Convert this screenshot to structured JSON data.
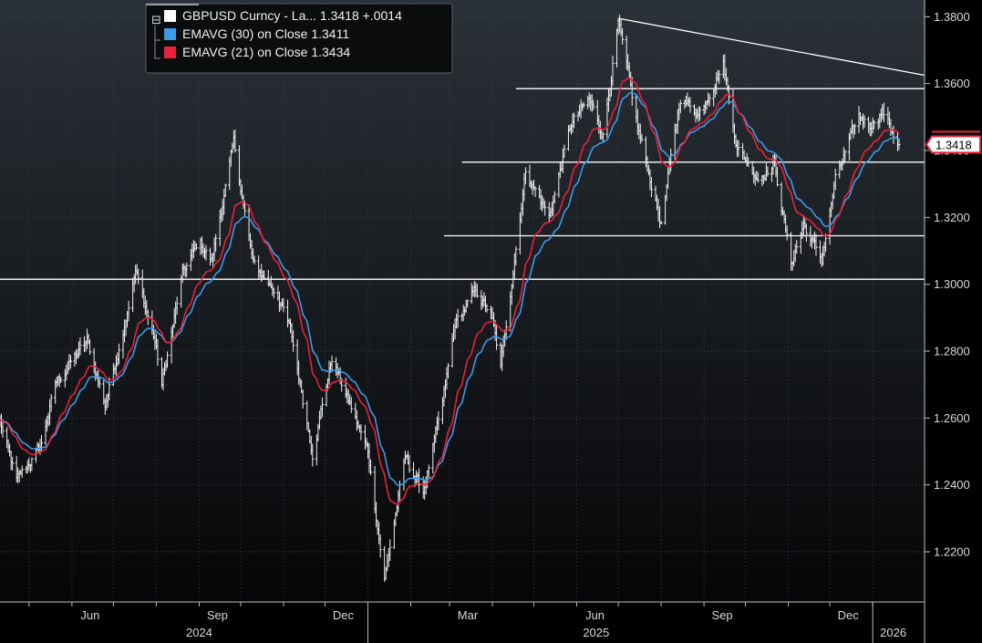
{
  "chart_data": {
    "type": "line",
    "x_type": "date",
    "x_range": [
      "2024-04-10",
      "2026-01-20"
    ],
    "y_range": [
      1.205,
      1.385
    ],
    "yticks": [
      1.22,
      1.24,
      1.26,
      1.28,
      1.3,
      1.32,
      1.34,
      1.36,
      1.38
    ],
    "ytick_labels": [
      "1.2200",
      "1.2400",
      "1.2600",
      "1.2800",
      "1.3000",
      "1.3200",
      "1.3400",
      "1.3600",
      "1.3800"
    ],
    "month_ticks": [
      {
        "date": "2024-05-01",
        "label": ""
      },
      {
        "date": "2024-06-01",
        "label": "Jun"
      },
      {
        "date": "2024-07-01",
        "label": ""
      },
      {
        "date": "2024-08-01",
        "label": ""
      },
      {
        "date": "2024-09-01",
        "label": "Sep"
      },
      {
        "date": "2024-10-01",
        "label": ""
      },
      {
        "date": "2024-11-01",
        "label": ""
      },
      {
        "date": "2024-12-01",
        "label": "Dec"
      },
      {
        "date": "2025-01-01",
        "label": ""
      },
      {
        "date": "2025-02-01",
        "label": ""
      },
      {
        "date": "2025-03-01",
        "label": "Mar"
      },
      {
        "date": "2025-04-01",
        "label": ""
      },
      {
        "date": "2025-05-01",
        "label": ""
      },
      {
        "date": "2025-06-01",
        "label": "Jun"
      },
      {
        "date": "2025-07-01",
        "label": ""
      },
      {
        "date": "2025-08-01",
        "label": ""
      },
      {
        "date": "2025-09-01",
        "label": "Sep"
      },
      {
        "date": "2025-10-01",
        "label": ""
      },
      {
        "date": "2025-11-01",
        "label": ""
      },
      {
        "date": "2025-12-01",
        "label": "Dec"
      },
      {
        "date": "2026-01-01",
        "label": ""
      }
    ],
    "year_labels": [
      {
        "date": "2024-09-01",
        "label": "2024"
      },
      {
        "date": "2025-06-15",
        "label": "2025"
      }
    ],
    "year_separators": [
      "2025-01-01",
      "2026-01-01"
    ],
    "last_year_label": "2026",
    "price_keypoints": [
      [
        "2024-04-10",
        1.259
      ],
      [
        "2024-04-22",
        1.241
      ],
      [
        "2024-05-10",
        1.252
      ],
      [
        "2024-05-20",
        1.27
      ],
      [
        "2024-05-30",
        1.276
      ],
      [
        "2024-06-12",
        1.283
      ],
      [
        "2024-06-25",
        1.264
      ],
      [
        "2024-07-05",
        1.281
      ],
      [
        "2024-07-17",
        1.304
      ],
      [
        "2024-07-31",
        1.283
      ],
      [
        "2024-08-05",
        1.27
      ],
      [
        "2024-08-20",
        1.303
      ],
      [
        "2024-09-01",
        1.313
      ],
      [
        "2024-09-10",
        1.307
      ],
      [
        "2024-09-26",
        1.342
      ],
      [
        "2024-10-10",
        1.306
      ],
      [
        "2024-10-28",
        1.297
      ],
      [
        "2024-11-06",
        1.286
      ],
      [
        "2024-11-22",
        1.25
      ],
      [
        "2024-12-06",
        1.278
      ],
      [
        "2024-12-18",
        1.265
      ],
      [
        "2025-01-01",
        1.25
      ],
      [
        "2025-01-13",
        1.212
      ],
      [
        "2025-01-28",
        1.248
      ],
      [
        "2025-02-10",
        1.238
      ],
      [
        "2025-02-24",
        1.264
      ],
      [
        "2025-03-05",
        1.288
      ],
      [
        "2025-03-20",
        1.298
      ],
      [
        "2025-03-31",
        1.291
      ],
      [
        "2025-04-07",
        1.275
      ],
      [
        "2025-04-25",
        1.334
      ],
      [
        "2025-05-12",
        1.32
      ],
      [
        "2025-05-28",
        1.348
      ],
      [
        "2025-06-10",
        1.355
      ],
      [
        "2025-06-20",
        1.345
      ],
      [
        "2025-07-01",
        1.378
      ],
      [
        "2025-07-15",
        1.347
      ],
      [
        "2025-08-01",
        1.318
      ],
      [
        "2025-08-15",
        1.356
      ],
      [
        "2025-08-28",
        1.351
      ],
      [
        "2025-09-15",
        1.366
      ],
      [
        "2025-09-25",
        1.341
      ],
      [
        "2025-10-10",
        1.332
      ],
      [
        "2025-10-22",
        1.336
      ],
      [
        "2025-11-03",
        1.306
      ],
      [
        "2025-11-12",
        1.318
      ],
      [
        "2025-11-25",
        1.307
      ],
      [
        "2025-12-05",
        1.331
      ],
      [
        "2025-12-22",
        1.35
      ],
      [
        "2025-12-30",
        1.348
      ],
      [
        "2026-01-08",
        1.352
      ],
      [
        "2026-01-20",
        1.3418
      ]
    ],
    "horizontal_lines": [
      {
        "from": "2024-04-10",
        "to": "2026-01-20",
        "y": 1.3015
      },
      {
        "from": "2025-02-25",
        "to": "2026-01-20",
        "y": 1.3145
      },
      {
        "from": "2025-03-10",
        "to": "2026-01-20",
        "y": 1.3365
      },
      {
        "from": "2025-04-18",
        "to": "2026-01-20",
        "y": 1.3585
      }
    ],
    "trend_line": {
      "from": [
        "2025-07-01",
        1.3795
      ],
      "to": [
        "2026-01-20",
        1.3625
      ]
    },
    "series": [
      {
        "name": "GBPUSD Curncy - La...",
        "value": "1.3418",
        "change": "+.0014",
        "color": "#ffffff"
      },
      {
        "name": "EMAVG (30)  on Close",
        "value": "1.3411",
        "color": "#3d9ae8",
        "period": 30
      },
      {
        "name": "EMAVG (21)  on Close",
        "value": "1.3434",
        "color": "#e8203a",
        "period": 21
      }
    ],
    "last_price_tag": "1.3418",
    "last_price_tag_color": "#e8203a",
    "grid": true,
    "legend_position": "top-left"
  }
}
